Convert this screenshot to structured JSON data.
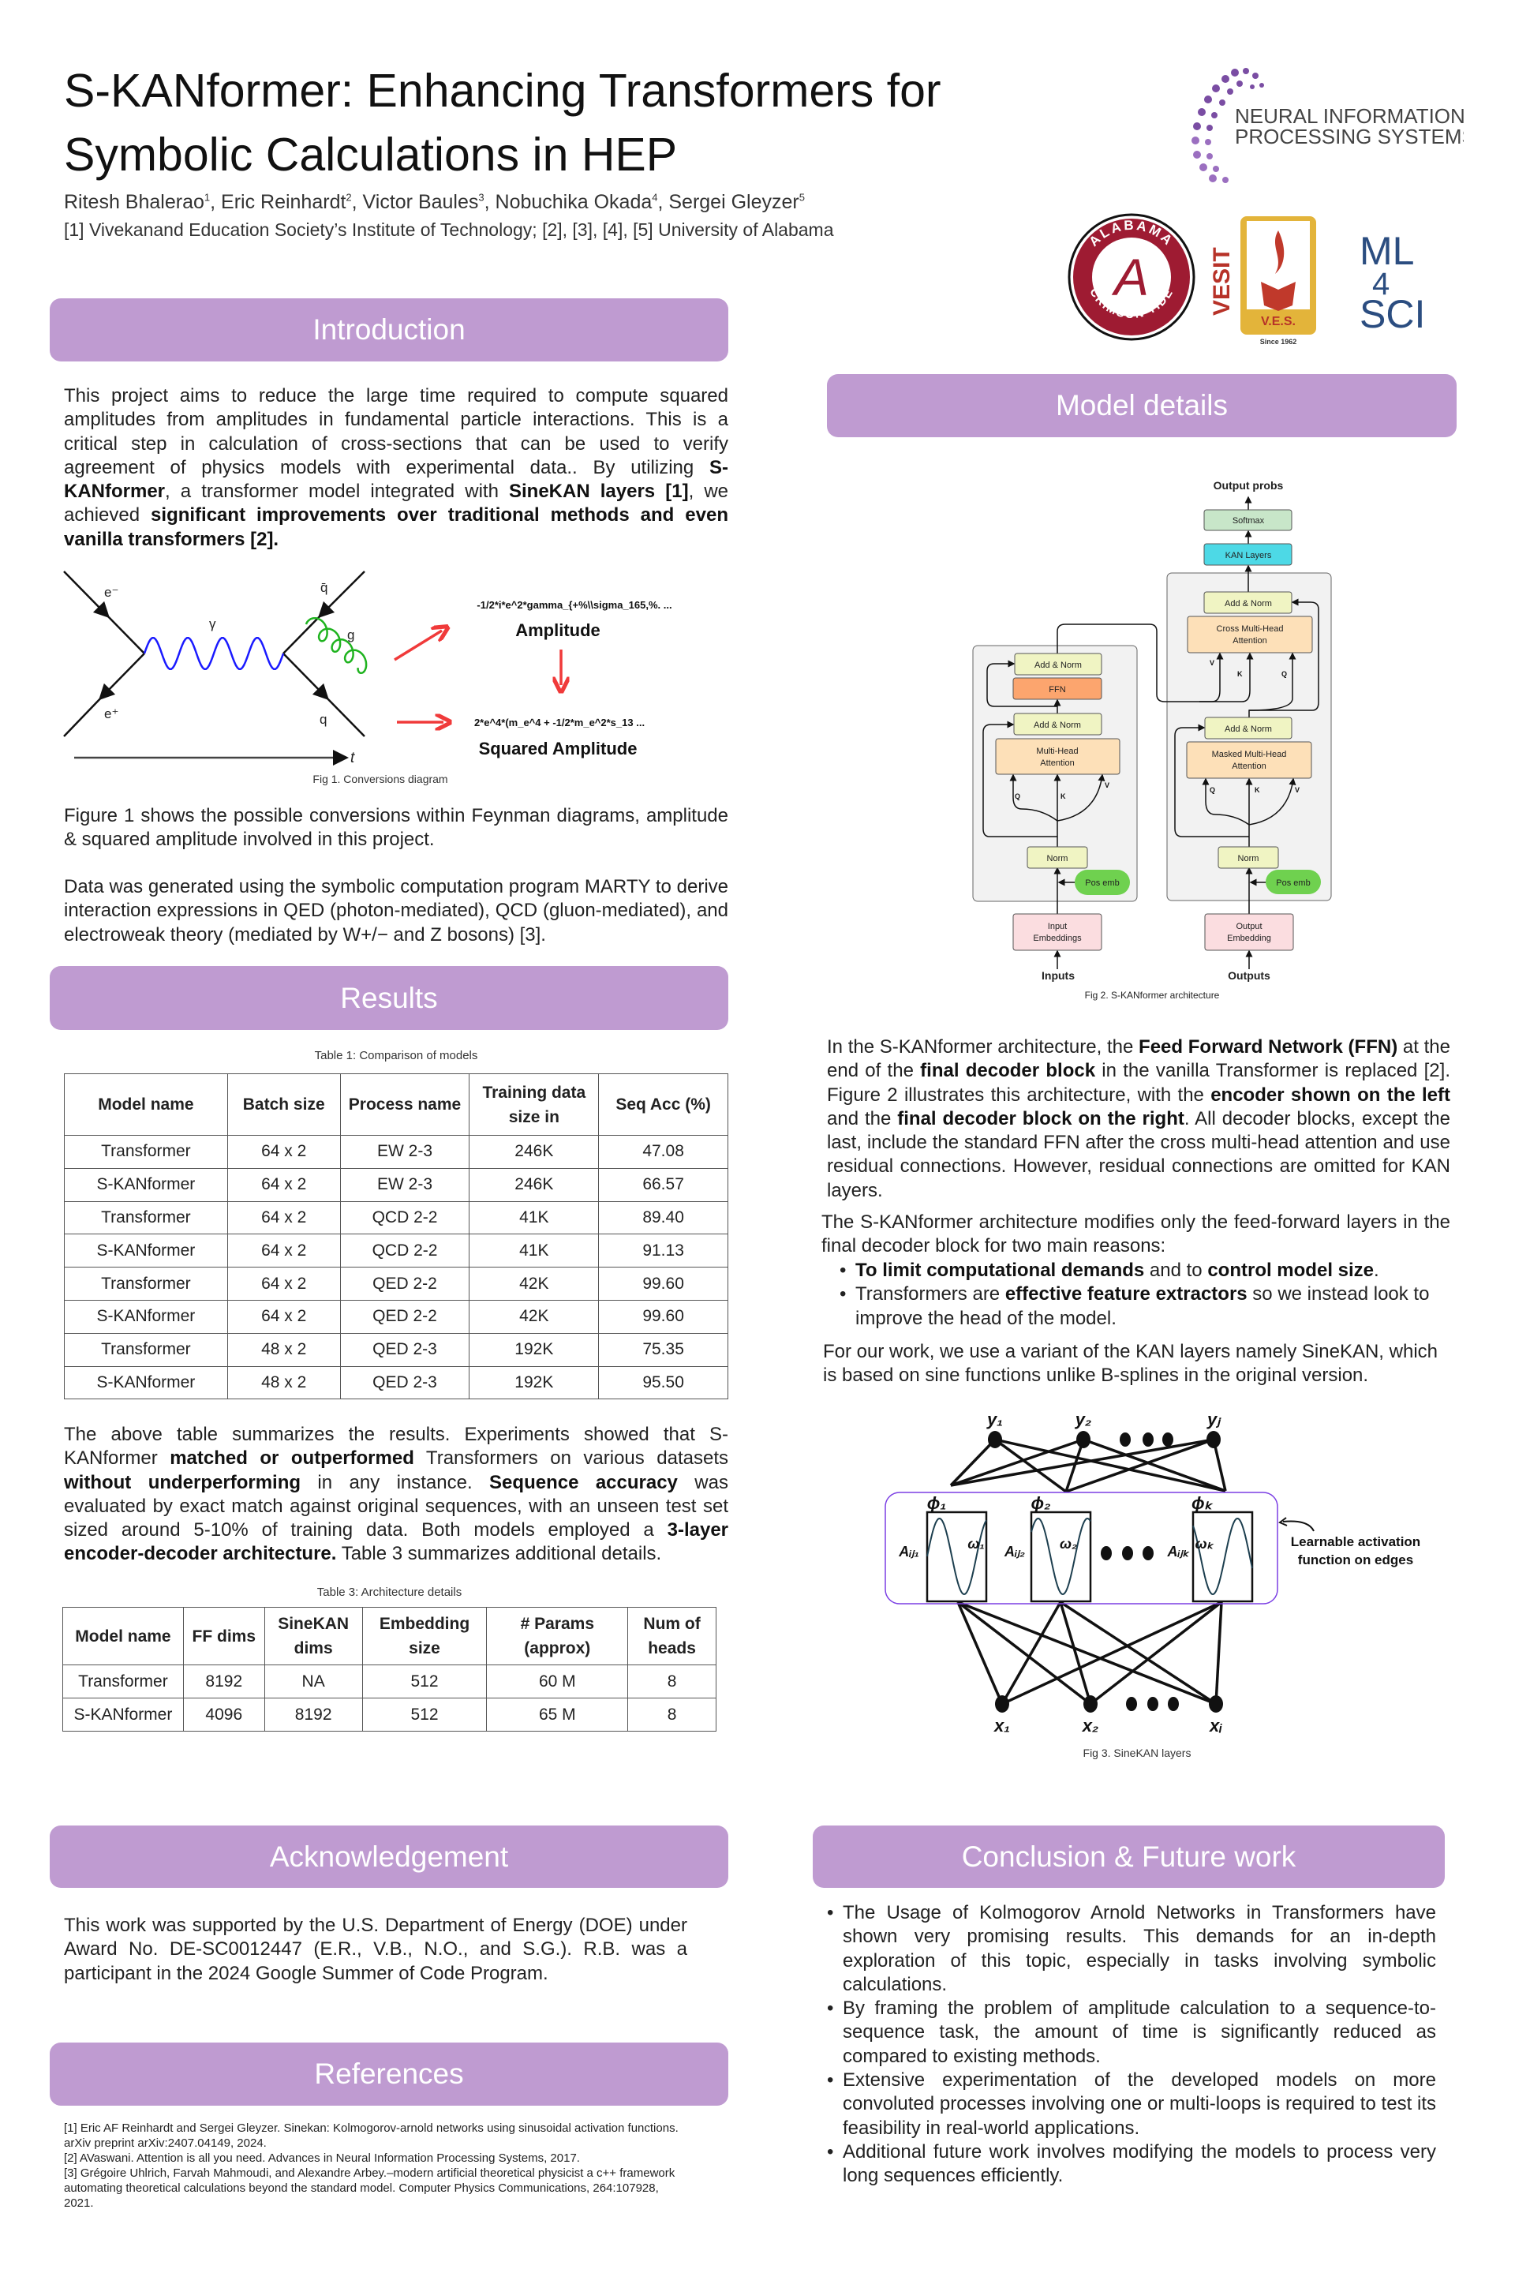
{
  "header": {
    "title_line1": "S-KANformer: Enhancing Transformers for",
    "title_line2": "Symbolic Calculations in HEP",
    "authors": [
      {
        "name": "Ritesh Bhalerao",
        "sup": "1"
      },
      {
        "name": ", Eric Reinhardt",
        "sup": "2"
      },
      {
        "name": ", Victor Baules",
        "sup": "3"
      },
      {
        "name": ", Nobuchika Okada",
        "sup": "4"
      },
      {
        "name": ", Sergei Gleyzer",
        "sup": "5"
      }
    ],
    "affiliations": "[1] Vivekanand Education Society’s Institute of Technology; [2], [3], [4], [5] University of Alabama"
  },
  "logos": {
    "neurips_line1": "NEURAL INFORMATION",
    "neurips_line2": "PROCESSING SYSTEMS",
    "alabama_top": "ALABAMA",
    "alabama_bottom": "CRIMSON TIDE",
    "alabama_letter": "A",
    "vesit": "VESIT",
    "ves": "V.E.S.",
    "ves_since": "Since 1962",
    "ml4sci_1": "ML",
    "ml4sci_2": "4",
    "ml4sci_3": "SCI"
  },
  "colors": {
    "section_header": "#bf9bd1",
    "arrow_red": "#f03a3a",
    "photon": "#1a1aff",
    "gluon": "#1fb31f"
  },
  "introduction": {
    "heading": "Introduction",
    "p1": [
      {
        "t": "This project aims to reduce the large time required to compute squared amplitudes from amplitudes in fundamental particle interactions. This is a critical step in calculation of cross-sections that can be used to verify agreement of physics models with experimental data.. By utilizing "
      },
      {
        "t": "S-KANformer",
        "b": true
      },
      {
        "t": ", a transformer model integrated with "
      },
      {
        "t": "SineKAN layers [1]",
        "b": true
      },
      {
        "t": ", we achieved "
      },
      {
        "t": "significant improvements over traditional methods and even vanilla transformers [2].",
        "b": true
      }
    ],
    "p2": [
      {
        "t": "Figure 1 shows the possible conversions within Feynman diagrams, amplitude & squared amplitude involved in this project."
      }
    ],
    "p3": [
      {
        "t": "Data was generated using the symbolic computation program MARTY  to derive interaction expressions in QED (photon-mediated), QCD (gluon-mediated), and electroweak theory (mediated by W+/− and Z bosons) [3]."
      }
    ]
  },
  "fig1": {
    "e_minus": "e⁻",
    "e_plus": "e⁺",
    "gamma": "γ",
    "qbar": "q̄",
    "g": "g",
    "q": "q",
    "t": "t",
    "amplitude_expr": "-1/2*i*e^2*gamma_{+%\\\\sigma_165,%. ...",
    "amplitude_label": "Amplitude",
    "squared_expr": "2*e^4*(m_e^4 + -1/2*m_e^2*s_13  ...",
    "squared_label": "Squared Amplitude",
    "caption": "Fig 1. Conversions diagram"
  },
  "results": {
    "heading": "Results",
    "table1_caption": "Table 1: Comparison of models",
    "table1_headers": [
      "Model name",
      "Batch size",
      "Process name",
      "Training data size in",
      "Seq Acc (%)"
    ],
    "table1_rows": [
      [
        "Transformer",
        "64 x 2",
        "EW 2-3",
        "246K",
        "47.08"
      ],
      [
        "S-KANformer",
        "64 x 2",
        "EW 2-3",
        "246K",
        "66.57"
      ],
      [
        "Transformer",
        "64 x 2",
        "QCD 2-2",
        "41K",
        "89.40"
      ],
      [
        "S-KANformer",
        "64 x 2",
        "QCD 2-2",
        "41K",
        "91.13"
      ],
      [
        "Transformer",
        "64 x 2",
        "QED 2-2",
        "42K",
        "99.60"
      ],
      [
        "S-KANformer",
        "64 x 2",
        "QED 2-2",
        "42K",
        "99.60"
      ],
      [
        "Transformer",
        "48 x 2",
        "QED 2-3",
        "192K",
        "75.35"
      ],
      [
        "S-KANformer",
        "48 x 2",
        "QED 2-3",
        "192K",
        "95.50"
      ]
    ],
    "p1": [
      {
        "t": "The above table summarizes the results. Experiments showed that S-KANformer "
      },
      {
        "t": "matched or outperformed",
        "b": true
      },
      {
        "t": " Transformers on various datasets "
      },
      {
        "t": "without underperforming",
        "b": true
      },
      {
        "t": " in any instance. "
      },
      {
        "t": "Sequence accuracy",
        "b": true
      },
      {
        "t": " was evaluated by exact match against original sequences, with an unseen test set sized around 5-10% of training data. Both models employed a "
      },
      {
        "t": "3-layer encoder-decoder architecture.",
        "b": true
      },
      {
        "t": " Table 3 summarizes additional details."
      }
    ],
    "table3_caption": "Table 3: Architecture details",
    "table3_headers": [
      "Model name",
      "FF dims",
      "SineKAN dims",
      "Embedding size",
      "# Params (approx)",
      "Num of heads"
    ],
    "table3_rows": [
      [
        "Transformer",
        "8192",
        "NA",
        "512",
        "60 M",
        "8"
      ],
      [
        "S-KANformer",
        "4096",
        "8192",
        "512",
        "65 M",
        "8"
      ]
    ]
  },
  "acknowledgement": {
    "heading": "Acknowledgement",
    "p1": [
      {
        "t": "This work was supported by the U.S. Department of Energy (DOE) under Award No. DE-SC0012447 (E.R., V.B., N.O., and S.G.). R.B. was a participant in the 2024 Google Summer of Code Program."
      }
    ]
  },
  "references": {
    "heading": "References",
    "items": [
      "[1]  Eric AF Reinhardt and Sergei Gleyzer. Sinekan: Kolmogorov-arnold networks using sinusoidal activation functions. arXiv preprint arXiv:2407.04149, 2024.",
      "[2] AVaswani. Attention is all you need. Advances in Neural Information Processing Systems, 2017.",
      "[3] Grégoire Uhlrich, Farvah Mahmoudi, and Alexandre Arbey.–modern artificial theoretical physicist a c++ framework automating theoretical calculations beyond the standard model. Computer Physics Communications, 264:107928, 2021."
    ]
  },
  "model_details": {
    "heading": "Model details",
    "p1": [
      {
        "t": "In the S-KANformer architecture, the "
      },
      {
        "t": "Feed Forward Network (FFN)",
        "b": true
      },
      {
        "t": " at the end of the "
      },
      {
        "t": "final decoder block",
        "b": true
      },
      {
        "t": " in the vanilla Transformer is replaced [2]. Figure 2 illustrates this architecture, with the "
      },
      {
        "t": "encoder shown on the left",
        "b": true
      },
      {
        "t": " and the "
      },
      {
        "t": "final decoder block on the right",
        "b": true
      },
      {
        "t": ". All decoder blocks, except the last, include the standard FFN after the cross multi-head attention and use residual connections. However, residual connections are omitted for KAN layers."
      }
    ],
    "p2": [
      {
        "t": "The S-KANformer architecture modifies only the feed-forward layers in the final decoder block for two main reasons:"
      }
    ],
    "bullet1": [
      {
        "t": "To limit computational demands",
        "b": true
      },
      {
        "t": " and to "
      },
      {
        "t": "control model size",
        "b": true
      },
      {
        "t": "."
      }
    ],
    "bullet2": [
      {
        "t": "Transformers are "
      },
      {
        "t": "effective feature extractors",
        "b": true
      },
      {
        "t": " so we instead look to improve the head of the model."
      }
    ],
    "p3": [
      {
        "t": "For our work, we use a variant of the KAN layers namely SineKAN, which is based on sine functions unlike B-splines in the original version."
      }
    ]
  },
  "fig2": {
    "output_probs": "Output probs",
    "softmax": "Softmax",
    "kan_layers": "KAN Layers",
    "add_norm": "Add & Norm",
    "cross_mha_1": "Cross Multi-Head",
    "cross_mha_2": "Attention",
    "masked_mha_1": "Masked Multi-Head",
    "masked_mha_2": "Attention",
    "mha_1": "Multi-Head",
    "mha_2": "Attention",
    "ffn": "FFN",
    "norm": "Norm",
    "pos_emb": "Pos emb",
    "q": "Q",
    "k": "K",
    "v": "V",
    "input_emb_1": "Input",
    "input_emb_2": "Embeddings",
    "output_emb_1": "Output",
    "output_emb_2": "Embedding",
    "inputs": "Inputs",
    "outputs": "Outputs",
    "caption": "Fig 2. S-KANformer architecture"
  },
  "fig3": {
    "y_labels": [
      "y₁",
      "y₂",
      "yⱼ"
    ],
    "x_labels": [
      "x₁",
      "x₂",
      "xᵢ"
    ],
    "phi_labels": [
      "ϕ₁",
      "ϕ₂",
      "ϕₖ"
    ],
    "a_labels": [
      "Aᵢⱼ₁",
      "Aᵢⱼ₂",
      "Aᵢⱼₖ"
    ],
    "omega_labels": [
      "ω₁",
      "ω₂",
      "ωₖ"
    ],
    "annotation_1": "Learnable activation",
    "annotation_2": "function on edges",
    "caption": "Fig 3. SineKAN layers"
  },
  "conclusion": {
    "heading": "Conclusion & Future work",
    "items": [
      "The Usage of Kolmogorov Arnold Networks in Transformers have shown very promising results. This demands for an in-depth exploration of this topic, especially in tasks involving symbolic calculations.",
      "By framing the problem of amplitude calculation to a sequence-to-sequence task, the amount of time is significantly reduced as compared to existing methods.",
      "Extensive experimentation of the developed models on more convoluted processes involving one or multi-loops is required to test its feasibility in real-world applications.",
      "Additional future work involves modifying the models to process very long sequences efficiently."
    ]
  }
}
